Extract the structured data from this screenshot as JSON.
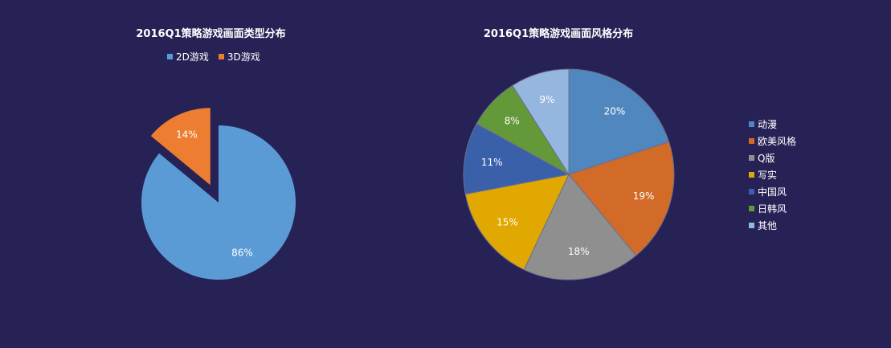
{
  "chart_data": [
    {
      "type": "pie",
      "title": "2016Q1策略游戏画面类型分布",
      "legend_placement": "top",
      "categories": [
        "2D游戏",
        "3D游戏"
      ],
      "values": [
        86,
        14
      ],
      "labels": [
        "86%",
        "14%"
      ],
      "colors": [
        "#5B9BD5",
        "#ED7D31"
      ],
      "exploded": [
        false,
        true
      ]
    },
    {
      "type": "pie",
      "title": "2016Q1策略游戏画面风格分布",
      "legend_placement": "right",
      "categories": [
        "动漫",
        "欧美风格",
        "Q版",
        "写实",
        "中国风",
        "日韩风",
        "其他"
      ],
      "values": [
        20,
        19,
        18,
        15,
        11,
        8,
        9
      ],
      "labels": [
        "20%",
        "19%",
        "18%",
        "15%",
        "11%",
        "8%",
        "9%"
      ],
      "colors": [
        "#4F87BE",
        "#D26A28",
        "#8F8F8F",
        "#E0A800",
        "#3A60AA",
        "#64993A",
        "#94B6DF"
      ]
    }
  ]
}
